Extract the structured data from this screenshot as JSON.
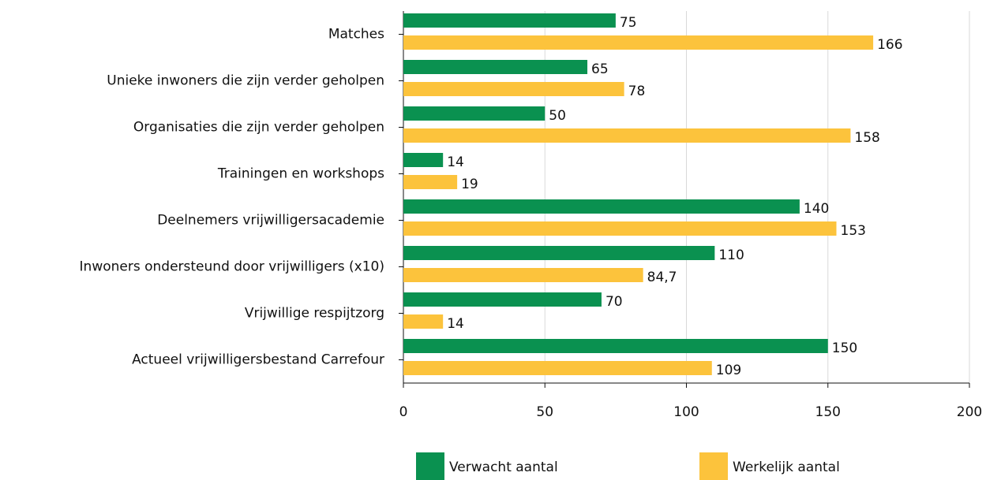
{
  "chart_data": {
    "type": "bar",
    "orientation": "horizontal",
    "categories": [
      "Matches",
      "Unieke inwoners die zijn verder geholpen",
      "Organisaties die zijn verder geholpen",
      "Trainingen en workshops",
      "Deelnemers vrijwilligersacademie",
      "Inwoners ondersteund door vrijwilligers (x10)",
      "Vrijwillige respijtzorg",
      "Actueel vrijwilligersbestand Carrefour"
    ],
    "series": [
      {
        "name": "Verwacht aantal",
        "color": "#0a9150",
        "values": [
          75,
          65,
          50,
          14,
          140,
          110,
          70,
          150
        ]
      },
      {
        "name": "Werkelijk aantal",
        "color": "#fcc33c",
        "values": [
          166,
          78,
          158,
          19,
          153,
          84.7,
          14,
          109
        ],
        "value_labels": [
          "166",
          "78",
          "158",
          "19",
          "153",
          "84,7",
          "14",
          "109"
        ]
      }
    ],
    "xlim": [
      0,
      200
    ],
    "xticks": [
      0,
      50,
      100,
      150,
      200
    ],
    "grid": true,
    "legend": "bottom"
  }
}
